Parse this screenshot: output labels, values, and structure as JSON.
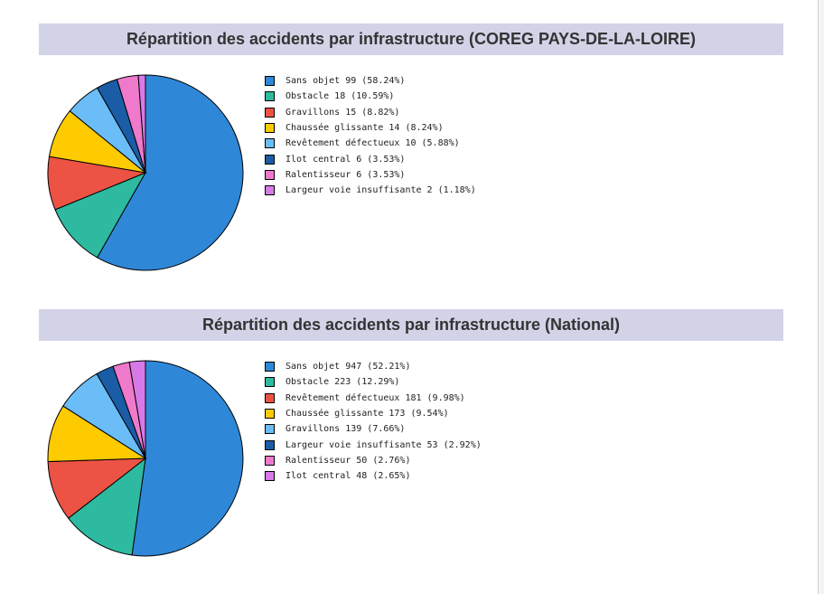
{
  "chart_data": [
    {
      "type": "pie",
      "title": "Répartition des accidents par infrastructure (COREG PAYS-DE-LA-LOIRE)",
      "slices": [
        {
          "label": "Sans objet 99 (58.24%)",
          "value": 99,
          "color": "#2f87d8"
        },
        {
          "label": "Obstacle 18 (10.59%)",
          "value": 18,
          "color": "#2ebaa0"
        },
        {
          "label": "Gravillons 15 (8.82%)",
          "value": 15,
          "color": "#ec5344"
        },
        {
          "label": "Chaussée glissante 14 (8.24%)",
          "value": 14,
          "color": "#fecb00"
        },
        {
          "label": "Revêtement défectueux 10 (5.88%)",
          "value": 10,
          "color": "#6abdf7"
        },
        {
          "label": "Ilot central 6 (3.53%)",
          "value": 6,
          "color": "#1b5ca6"
        },
        {
          "label": "Ralentisseur 6 (3.53%)",
          "value": 6,
          "color": "#ef7acb"
        },
        {
          "label": "Largeur voie insuffisante 2 (1.18%)",
          "value": 2,
          "color": "#d77ae8"
        }
      ]
    },
    {
      "type": "pie",
      "title": "Répartition des accidents par infrastructure (National)",
      "slices": [
        {
          "label": "Sans objet 947 (52.21%)",
          "value": 947,
          "color": "#2f87d8"
        },
        {
          "label": "Obstacle 223 (12.29%)",
          "value": 223,
          "color": "#2ebaa0"
        },
        {
          "label": "Revêtement défectueux 181 (9.98%)",
          "value": 181,
          "color": "#ec5344"
        },
        {
          "label": "Chaussée glissante 173 (9.54%)",
          "value": 173,
          "color": "#fecb00"
        },
        {
          "label": "Gravillons 139 (7.66%)",
          "value": 139,
          "color": "#6abdf7"
        },
        {
          "label": "Largeur voie insuffisante 53 (2.92%)",
          "value": 53,
          "color": "#1b5ca6"
        },
        {
          "label": "Ralentisseur 50 (2.76%)",
          "value": 50,
          "color": "#ef7acb"
        },
        {
          "label": "Ilot central 48 (2.65%)",
          "value": 48,
          "color": "#d77ae8"
        }
      ]
    }
  ]
}
